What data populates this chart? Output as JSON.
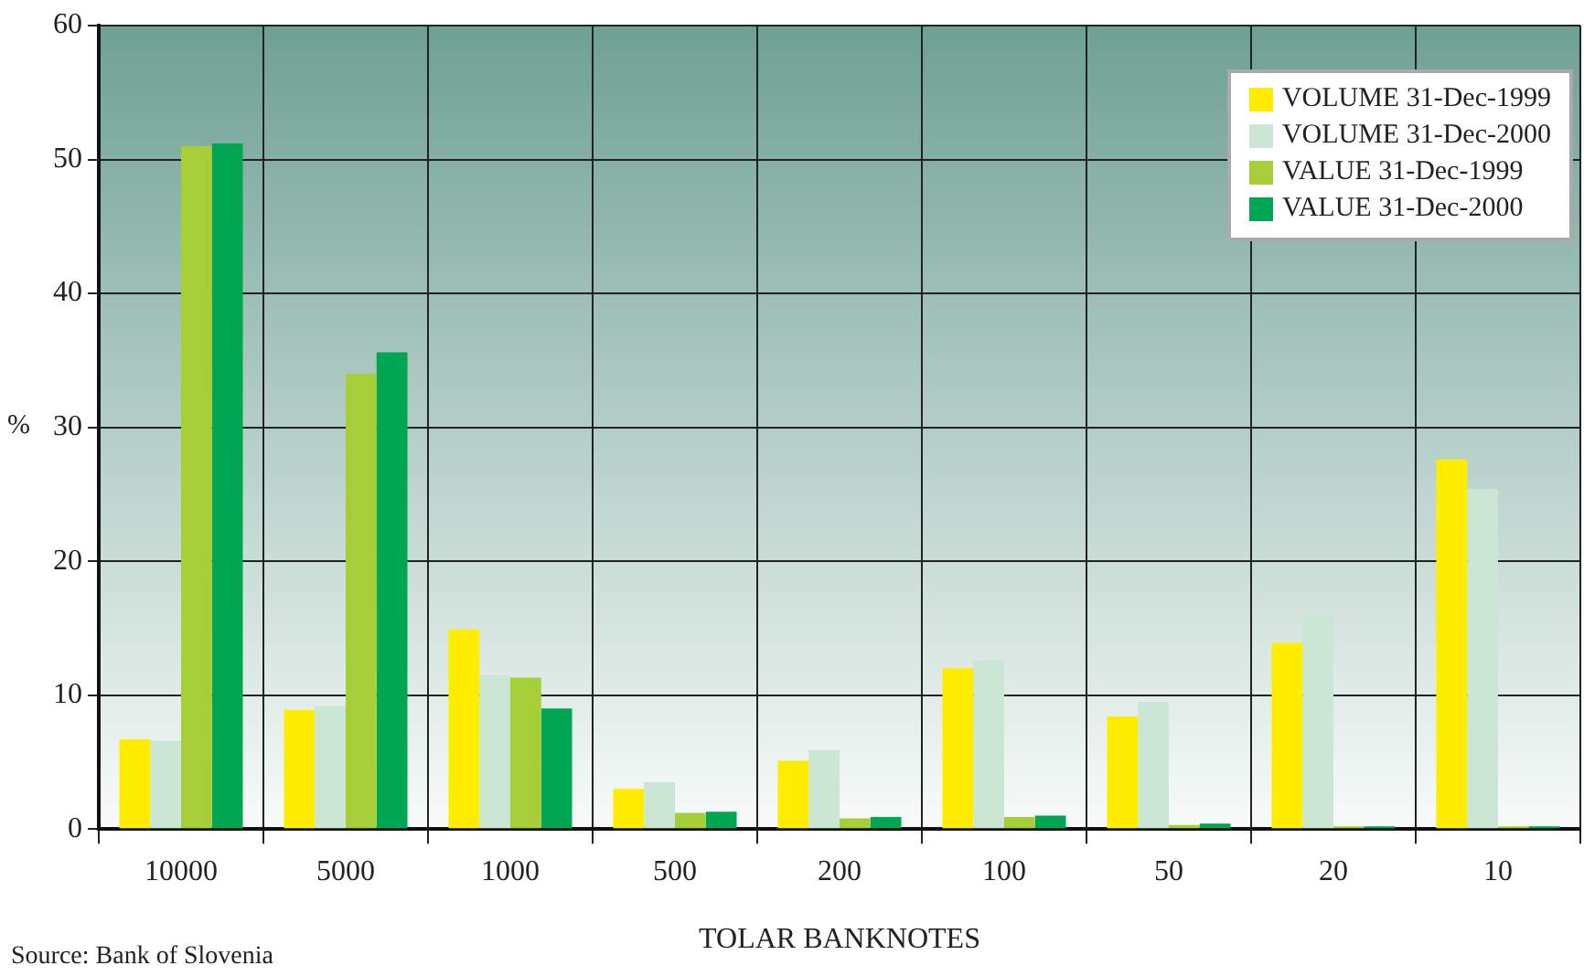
{
  "chart_data": {
    "type": "bar",
    "xlabel": "TOLAR BANKNOTES",
    "ylabel": "%",
    "categories": [
      "10000",
      "5000",
      "1000",
      "500",
      "200",
      "100",
      "50",
      "20",
      "10"
    ],
    "series": [
      {
        "name": "VOLUME 31-Dec-1999",
        "color": "#ffed00",
        "values": [
          6.7,
          8.9,
          14.9,
          3.0,
          5.1,
          12.0,
          8.4,
          13.9,
          27.6
        ]
      },
      {
        "name": "VOLUME 31-Dec-2000",
        "color": "#cce6d6",
        "values": [
          6.6,
          9.2,
          11.5,
          3.5,
          5.9,
          12.6,
          9.5,
          16.1,
          25.4
        ]
      },
      {
        "name": "VALUE 31-Dec-1999",
        "color": "#a6ce39",
        "values": [
          51.0,
          34.0,
          11.3,
          1.2,
          0.8,
          0.9,
          0.3,
          0.2,
          0.2
        ]
      },
      {
        "name": "VALUE 31-Dec-2000",
        "color": "#00a651",
        "values": [
          51.2,
          35.6,
          9.0,
          1.3,
          0.9,
          1.0,
          0.4,
          0.2,
          0.2
        ]
      }
    ],
    "ylim": [
      0,
      60
    ],
    "yticks": [
      0,
      10,
      20,
      30,
      40,
      50,
      60
    ],
    "grid": true,
    "legend": "top right",
    "annotations": [
      "Source: Bank of Slovenia"
    ]
  }
}
